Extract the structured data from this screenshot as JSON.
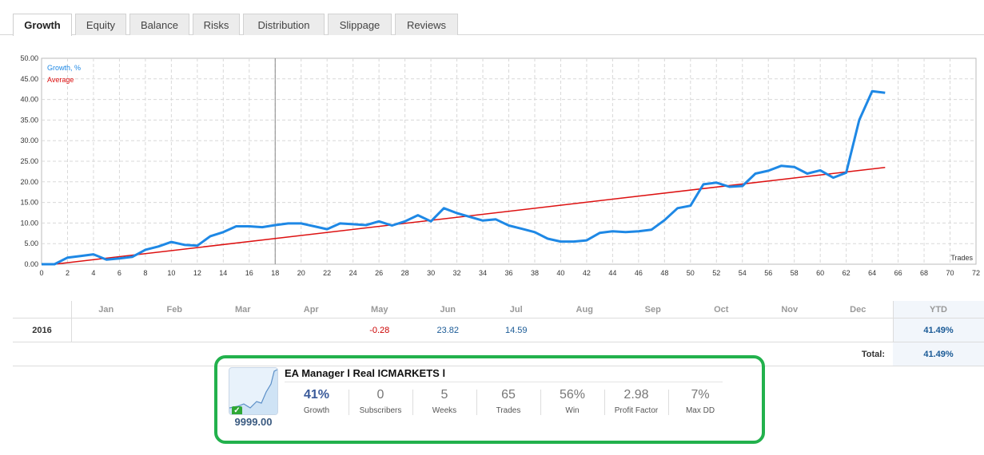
{
  "tabs": [
    {
      "label": "Growth",
      "active": true
    },
    {
      "label": "Equity",
      "active": false
    },
    {
      "label": "Balance",
      "active": false
    },
    {
      "label": "Risks",
      "active": false
    },
    {
      "label": "Distribution",
      "active": false
    },
    {
      "label": "Slippage",
      "active": false
    },
    {
      "label": "Reviews",
      "active": false
    }
  ],
  "chart_data": {
    "type": "line",
    "legend": [
      "Growth, %",
      "Average"
    ],
    "x_axis_label": "Trades",
    "xlim": [
      0,
      72
    ],
    "ylim": [
      0,
      50
    ],
    "x_ticks": [
      "0",
      "2",
      "4",
      "6",
      "8",
      "10",
      "12",
      "14",
      "16",
      "18",
      "20",
      "22",
      "24",
      "26",
      "28",
      "30",
      "32",
      "34",
      "36",
      "38",
      "40",
      "42",
      "44",
      "46",
      "48",
      "50",
      "52",
      "54",
      "56",
      "58",
      "60",
      "62",
      "64",
      "66",
      "68",
      "70",
      "72"
    ],
    "y_ticks": [
      "0.00",
      "5.00",
      "10.00",
      "15.00",
      "20.00",
      "25.00",
      "30.00",
      "35.00",
      "40.00",
      "45.00",
      "50.00"
    ],
    "grid": true,
    "marker_x": 18,
    "series": [
      {
        "name": "Growth, %",
        "color": "#1e88e5",
        "x": [
          0,
          1,
          2,
          3,
          4,
          5,
          6,
          7,
          8,
          9,
          10,
          11,
          12,
          13,
          14,
          15,
          16,
          17,
          18,
          19,
          20,
          21,
          22,
          23,
          24,
          25,
          26,
          27,
          28,
          29,
          30,
          31,
          32,
          33,
          34,
          35,
          36,
          37,
          38,
          39,
          40,
          41,
          42,
          43,
          44,
          45,
          46,
          47,
          48,
          49,
          50,
          51,
          52,
          53,
          54,
          55,
          56,
          57,
          58,
          59,
          60,
          61,
          62,
          63,
          64,
          65
        ],
        "y": [
          0,
          0,
          1.6,
          2.0,
          2.4,
          1.1,
          1.4,
          1.8,
          3.5,
          4.3,
          5.4,
          4.7,
          4.5,
          6.8,
          7.8,
          9.2,
          9.2,
          9.0,
          9.5,
          9.9,
          9.9,
          9.2,
          8.5,
          9.9,
          9.7,
          9.5,
          10.4,
          9.4,
          10.4,
          11.9,
          10.4,
          13.6,
          12.4,
          11.5,
          10.6,
          10.9,
          9.4,
          8.6,
          7.8,
          6.2,
          5.5,
          5.5,
          5.8,
          7.6,
          8.0,
          7.8,
          8.0,
          8.4,
          10.7,
          13.6,
          14.2,
          19.4,
          19.8,
          18.8,
          19.0,
          22.0,
          22.7,
          23.9,
          23.6,
          22.0,
          22.8,
          21.0,
          22.2,
          35.0,
          42.0,
          41.6
        ]
      },
      {
        "name": "Average",
        "color": "#dd1111",
        "x": [
          1,
          65
        ],
        "y": [
          0,
          23.5
        ]
      }
    ]
  },
  "monthly": {
    "months": [
      "Jan",
      "Feb",
      "Mar",
      "Apr",
      "May",
      "Jun",
      "Jul",
      "Aug",
      "Sep",
      "Oct",
      "Nov",
      "Dec"
    ],
    "ytd_label": "YTD",
    "year": "2016",
    "values": [
      "",
      "",
      "",
      "",
      "-0.28",
      "23.82",
      "14.59",
      "",
      "",
      "",
      "",
      ""
    ],
    "ytd": "41.49%",
    "total_label": "Total:",
    "total": "41.49%"
  },
  "signal": {
    "title": "EA Manager l Real ICMARKETS l",
    "price": "9999.00",
    "stats": [
      {
        "value": "41%",
        "label": "Growth"
      },
      {
        "value": "0",
        "label": "Subscribers"
      },
      {
        "value": "5",
        "label": "Weeks"
      },
      {
        "value": "65",
        "label": "Trades"
      },
      {
        "value": "56%",
        "label": "Win"
      },
      {
        "value": "2.98",
        "label": "Profit Factor"
      },
      {
        "value": "7%",
        "label": "Max DD"
      }
    ]
  }
}
